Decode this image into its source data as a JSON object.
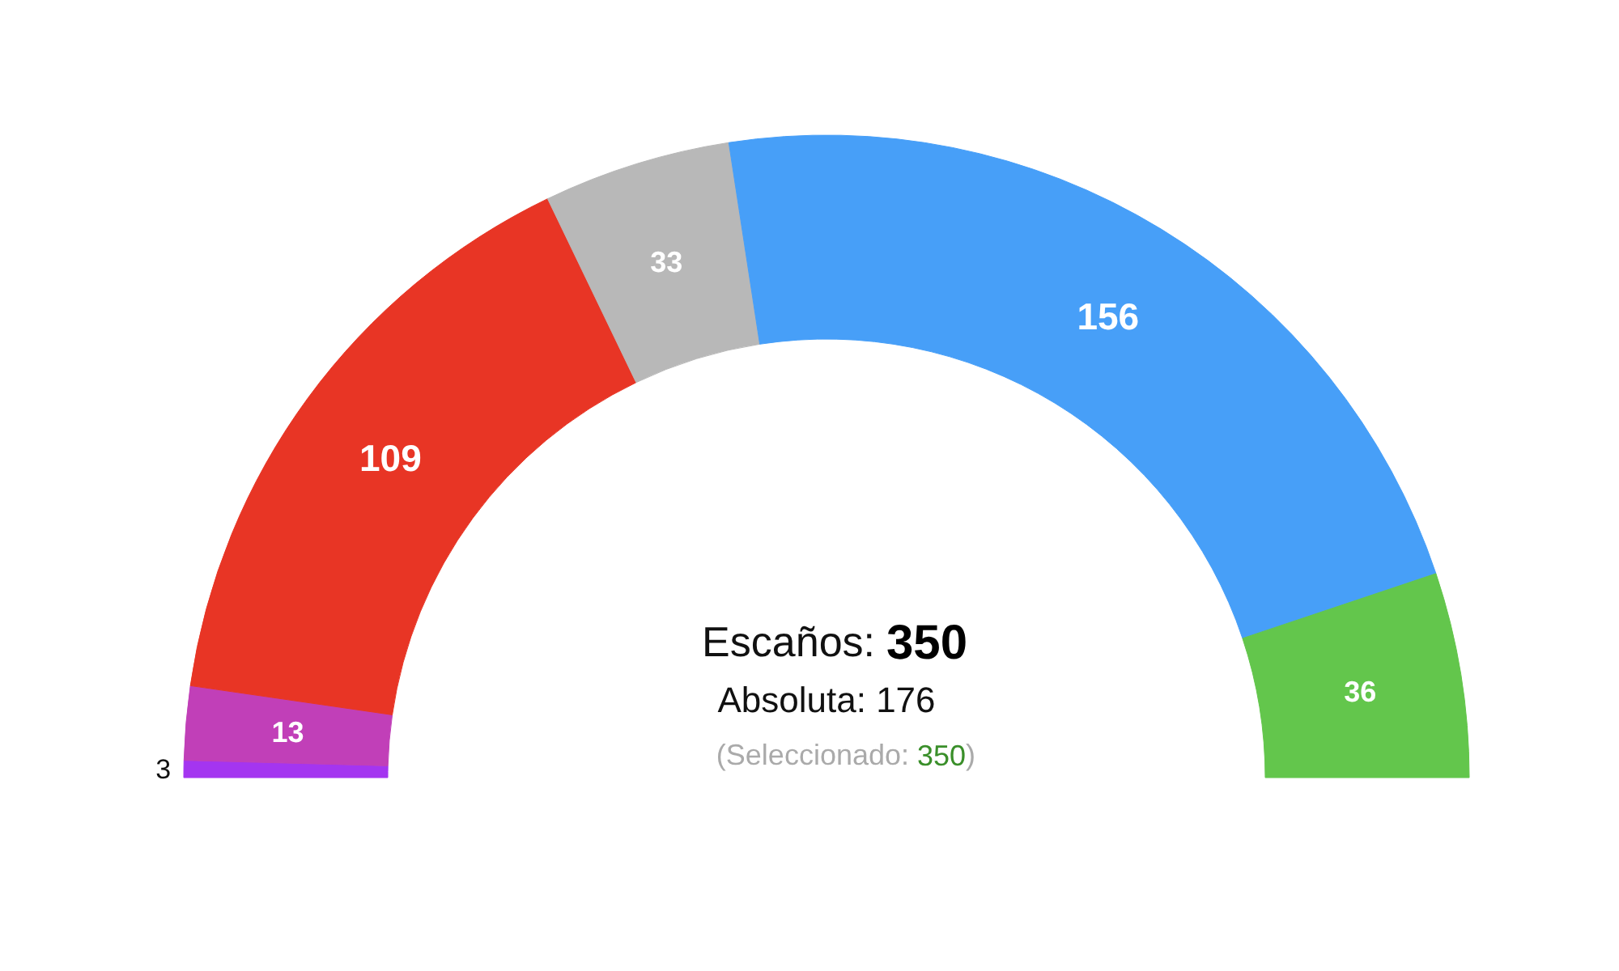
{
  "chart_data": {
    "type": "donut",
    "categories": [
      null,
      null,
      null,
      null,
      null,
      null
    ],
    "values": [
      3,
      13,
      109,
      33,
      156,
      36
    ],
    "colors": [
      "#a435f0",
      "#c13fb8",
      "#e83525",
      "#b8b8b8",
      "#479ff8",
      "#63c64c"
    ],
    "data_labels": true,
    "annotations": [
      "Escaños: 350",
      "Absoluta: 176",
      "(Seleccionado: 350)"
    ]
  }
}
